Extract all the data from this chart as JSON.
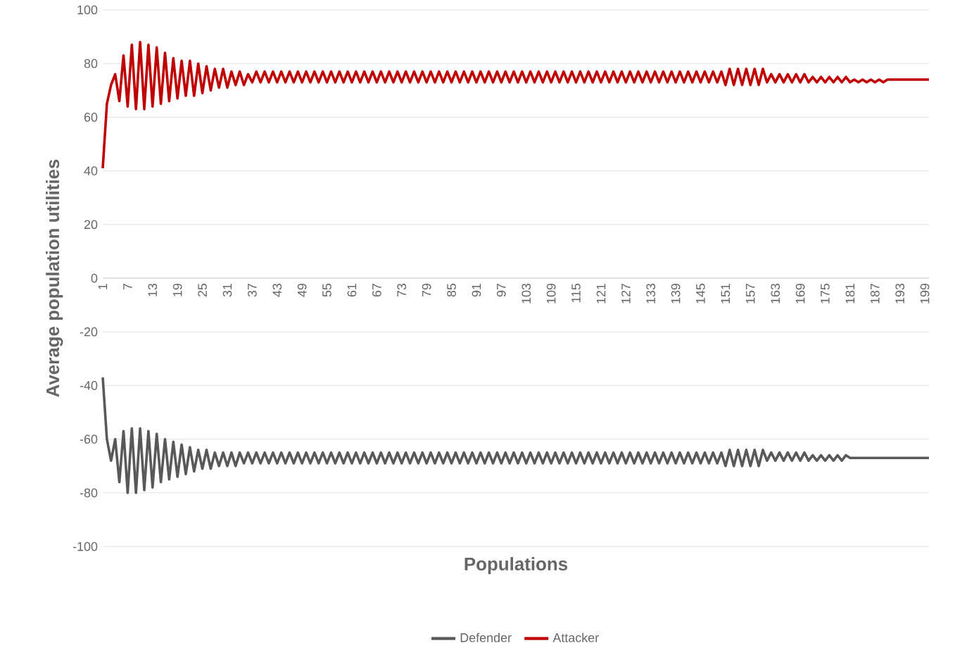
{
  "chart_data": {
    "type": "line",
    "xlabel": "Populations",
    "ylabel": "Average population utilities",
    "categories": [
      "1",
      null,
      null,
      null,
      null,
      null,
      "7",
      null,
      null,
      null,
      null,
      null,
      "13",
      null,
      null,
      null,
      null,
      null,
      "19",
      null,
      null,
      null,
      null,
      null,
      "25",
      null,
      null,
      null,
      null,
      null,
      "31",
      null,
      null,
      null,
      null,
      null,
      "37",
      null,
      null,
      null,
      null,
      null,
      "43",
      null,
      null,
      null,
      null,
      null,
      "49",
      null,
      null,
      null,
      null,
      null,
      "55",
      null,
      null,
      null,
      null,
      null,
      "61",
      null,
      null,
      null,
      null,
      null,
      "67",
      null,
      null,
      null,
      null,
      null,
      "73",
      null,
      null,
      null,
      null,
      null,
      "79",
      null,
      null,
      null,
      null,
      null,
      "85",
      null,
      null,
      null,
      null,
      null,
      "91",
      null,
      null,
      null,
      null,
      null,
      "97",
      null,
      null,
      null,
      null,
      null,
      "103",
      null,
      null,
      null,
      null,
      null,
      "109",
      null,
      null,
      null,
      null,
      null,
      "115",
      null,
      null,
      null,
      null,
      null,
      "121",
      null,
      null,
      null,
      null,
      null,
      "127",
      null,
      null,
      null,
      null,
      null,
      "133",
      null,
      null,
      null,
      null,
      null,
      "139",
      null,
      null,
      null,
      null,
      null,
      "145",
      null,
      null,
      null,
      null,
      null,
      "151",
      null,
      null,
      null,
      null,
      null,
      "157",
      null,
      null,
      null,
      null,
      null,
      "163",
      null,
      null,
      null,
      null,
      null,
      "169",
      null,
      null,
      null,
      null,
      null,
      "175",
      null,
      null,
      null,
      null,
      null,
      "181",
      null,
      null,
      null,
      null,
      null,
      "187",
      null,
      null,
      null,
      null,
      null,
      "193",
      null,
      null,
      null,
      null,
      null,
      "199",
      null
    ],
    "series": [
      {
        "name": "Defender",
        "color": "#595959",
        "values": [
          -37,
          -60,
          -68,
          -60,
          -76,
          -57,
          -80,
          -56,
          -80,
          -56,
          -79,
          -57,
          -78,
          -58,
          -76,
          -60,
          -75,
          -61,
          -74,
          -62,
          -73,
          -63,
          -72,
          -64,
          -71,
          -64,
          -71,
          -65,
          -70,
          -65,
          -70,
          -65,
          -70,
          -65,
          -69,
          -65,
          -69,
          -65,
          -69,
          -65,
          -69,
          -65,
          -69,
          -65,
          -69,
          -65,
          -69,
          -65,
          -69,
          -65,
          -69,
          -65,
          -69,
          -65,
          -69,
          -65,
          -69,
          -65,
          -69,
          -65,
          -69,
          -65,
          -69,
          -65,
          -69,
          -65,
          -69,
          -65,
          -69,
          -65,
          -69,
          -65,
          -69,
          -65,
          -69,
          -65,
          -69,
          -65,
          -69,
          -65,
          -69,
          -65,
          -69,
          -65,
          -69,
          -65,
          -69,
          -65,
          -69,
          -65,
          -69,
          -65,
          -69,
          -65,
          -69,
          -65,
          -69,
          -65,
          -69,
          -65,
          -69,
          -65,
          -69,
          -65,
          -69,
          -65,
          -69,
          -65,
          -69,
          -65,
          -69,
          -65,
          -69,
          -65,
          -69,
          -65,
          -69,
          -65,
          -69,
          -65,
          -69,
          -65,
          -69,
          -65,
          -69,
          -65,
          -69,
          -65,
          -69,
          -65,
          -69,
          -65,
          -69,
          -65,
          -69,
          -65,
          -69,
          -65,
          -69,
          -65,
          -69,
          -65,
          -69,
          -65,
          -69,
          -65,
          -69,
          -65,
          -69,
          -65,
          -70,
          -64,
          -70,
          -64,
          -70,
          -64,
          -70,
          -64,
          -70,
          -64,
          -68,
          -65,
          -68,
          -65,
          -68,
          -65,
          -68,
          -65,
          -68,
          -65,
          -68,
          -66,
          -68,
          -66,
          -68,
          -66,
          -68,
          -66,
          -68,
          -66,
          -67,
          -67,
          -67,
          -67,
          -67,
          -67,
          -67,
          -67,
          -67,
          -67,
          -67,
          -67,
          -67,
          -67,
          -67,
          -67,
          -67,
          -67,
          -67,
          -67
        ]
      },
      {
        "name": "Attacker",
        "color": "#c00000",
        "values": [
          41,
          65,
          72,
          76,
          66,
          83,
          64,
          87,
          63,
          88,
          63,
          87,
          64,
          86,
          65,
          84,
          66,
          82,
          67,
          81,
          68,
          81,
          68,
          80,
          69,
          79,
          70,
          78,
          71,
          78,
          71,
          77,
          72,
          77,
          72,
          76,
          73,
          77,
          73,
          77,
          73,
          77,
          73,
          77,
          73,
          77,
          73,
          77,
          73,
          77,
          73,
          77,
          73,
          77,
          73,
          77,
          73,
          77,
          73,
          77,
          73,
          77,
          73,
          77,
          73,
          77,
          73,
          77,
          73,
          77,
          73,
          77,
          73,
          77,
          73,
          77,
          73,
          77,
          73,
          77,
          73,
          77,
          73,
          77,
          73,
          77,
          73,
          77,
          73,
          77,
          73,
          77,
          73,
          77,
          73,
          77,
          73,
          77,
          73,
          77,
          73,
          77,
          73,
          77,
          73,
          77,
          73,
          77,
          73,
          77,
          73,
          77,
          73,
          77,
          73,
          77,
          73,
          77,
          73,
          77,
          73,
          77,
          73,
          77,
          73,
          77,
          73,
          77,
          73,
          77,
          73,
          77,
          73,
          77,
          73,
          77,
          73,
          77,
          73,
          77,
          73,
          77,
          73,
          77,
          73,
          77,
          73,
          77,
          73,
          77,
          72,
          78,
          72,
          78,
          72,
          78,
          72,
          78,
          72,
          78,
          73,
          76,
          73,
          76,
          73,
          76,
          73,
          76,
          73,
          76,
          73,
          75,
          73,
          75,
          73,
          75,
          73,
          75,
          73,
          75,
          73,
          74,
          73,
          74,
          73,
          74,
          73,
          74,
          73,
          74,
          74,
          74,
          74,
          74,
          74,
          74,
          74,
          74,
          74,
          74
        ]
      }
    ],
    "ylim": [
      -100,
      100
    ],
    "yticks": [
      -100,
      -80,
      -60,
      -40,
      -20,
      0,
      20,
      40,
      60,
      80,
      100
    ],
    "grid": "y",
    "legend": "bottom",
    "marker": "none",
    "line_style": "solid"
  }
}
